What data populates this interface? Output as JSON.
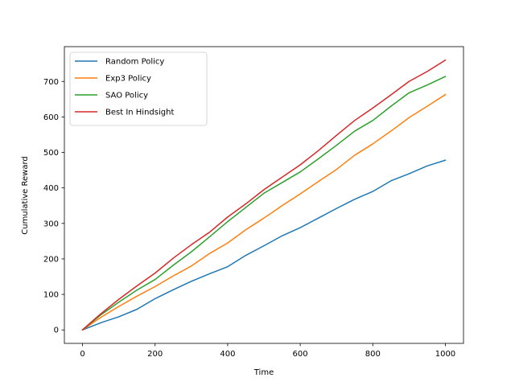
{
  "chart_data": {
    "type": "line",
    "title": "",
    "xlabel": "Time",
    "ylabel": "Cumulative Reward",
    "xlim": [
      -50,
      1050
    ],
    "ylim": [
      -38,
      798
    ],
    "xticks": [
      0,
      200,
      400,
      600,
      800,
      1000
    ],
    "yticks": [
      0,
      100,
      200,
      300,
      400,
      500,
      600,
      700
    ],
    "grid": false,
    "legend_position": "upper-left",
    "series": [
      {
        "name": "Random Policy",
        "color": "#1f77b4",
        "x": [
          0,
          50,
          100,
          150,
          200,
          250,
          300,
          350,
          400,
          450,
          500,
          550,
          600,
          650,
          700,
          750,
          800,
          850,
          900,
          950,
          1000
        ],
        "y": [
          0,
          20,
          37,
          58,
          88,
          113,
          137,
          158,
          178,
          210,
          237,
          265,
          288,
          315,
          342,
          368,
          390,
          420,
          440,
          462,
          478
        ]
      },
      {
        "name": "Exp3 Policy",
        "color": "#ff7f0e",
        "x": [
          0,
          50,
          100,
          150,
          200,
          250,
          300,
          350,
          400,
          450,
          500,
          550,
          600,
          650,
          700,
          750,
          800,
          850,
          900,
          950,
          1000
        ],
        "y": [
          0,
          35,
          66,
          95,
          122,
          152,
          180,
          215,
          245,
          282,
          315,
          350,
          383,
          418,
          452,
          492,
          524,
          560,
          598,
          630,
          663
        ]
      },
      {
        "name": "SAO Policy",
        "color": "#2ca02c",
        "x": [
          0,
          50,
          100,
          150,
          200,
          250,
          300,
          350,
          400,
          450,
          500,
          550,
          600,
          650,
          700,
          750,
          800,
          850,
          900,
          950,
          1000
        ],
        "y": [
          0,
          42,
          78,
          112,
          142,
          182,
          220,
          262,
          305,
          345,
          385,
          415,
          445,
          482,
          520,
          560,
          590,
          630,
          668,
          690,
          714
        ]
      },
      {
        "name": "Best In Hindsight",
        "color": "#d62728",
        "x": [
          0,
          50,
          100,
          150,
          200,
          250,
          300,
          350,
          400,
          450,
          500,
          550,
          600,
          650,
          700,
          750,
          800,
          850,
          900,
          950,
          1000
        ],
        "y": [
          0,
          45,
          86,
          124,
          160,
          202,
          240,
          275,
          318,
          355,
          395,
          430,
          465,
          505,
          548,
          590,
          625,
          662,
          700,
          728,
          760
        ]
      }
    ]
  }
}
